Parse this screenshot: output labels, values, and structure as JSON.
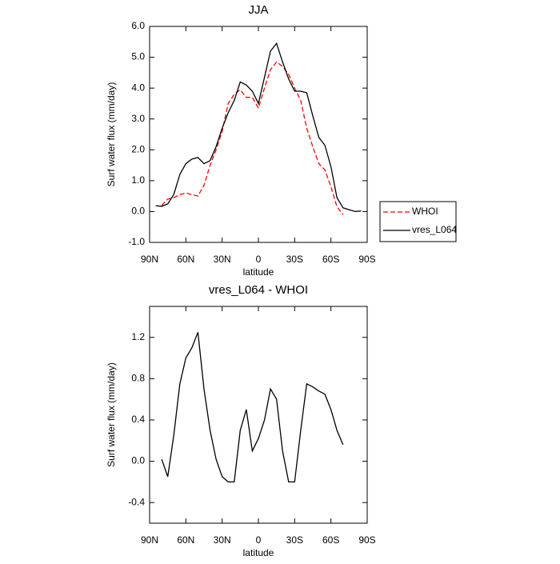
{
  "chart_data": [
    {
      "type": "line",
      "title": "JJA",
      "xlabel": "latitude",
      "ylabel": "Surf water flux (mm/day)",
      "x": [
        85,
        80,
        75,
        70,
        65,
        60,
        55,
        50,
        45,
        40,
        35,
        30,
        25,
        20,
        15,
        10,
        5,
        0,
        -5,
        -10,
        -15,
        -20,
        -25,
        -30,
        -35,
        -40,
        -45,
        -50,
        -55,
        -60,
        -65,
        -70,
        -75,
        -80,
        -85
      ],
      "series": [
        {
          "name": "WHOI",
          "color": "#ff0000",
          "line_style": "dashed",
          "values": [
            null,
            0.2,
            0.4,
            0.45,
            0.55,
            0.6,
            0.55,
            0.5,
            0.85,
            1.5,
            2.0,
            2.6,
            3.5,
            3.8,
            3.95,
            3.7,
            3.7,
            3.35,
            4.0,
            4.6,
            4.85,
            4.7,
            4.45,
            4.0,
            3.6,
            2.7,
            2.1,
            1.55,
            1.35,
            0.8,
            0.15,
            -0.1,
            null,
            null,
            null
          ]
        },
        {
          "name": "vres_L064",
          "color": "#000000",
          "line_style": "solid",
          "values": [
            0.19,
            0.17,
            0.25,
            0.55,
            1.2,
            1.55,
            1.7,
            1.75,
            1.55,
            1.65,
            2.1,
            2.7,
            3.2,
            3.6,
            4.2,
            4.1,
            3.9,
            3.5,
            4.35,
            5.2,
            5.45,
            4.85,
            4.3,
            3.9,
            3.9,
            3.85,
            3.1,
            2.4,
            2.15,
            1.45,
            0.45,
            0.12,
            0.06,
            0.0,
            0.02
          ]
        }
      ],
      "xlim": [
        90,
        -90
      ],
      "xticks": [
        {
          "value": 90,
          "label": "90N"
        },
        {
          "value": 60,
          "label": "60N"
        },
        {
          "value": 30,
          "label": "30N"
        },
        0,
        {
          "value": -30,
          "label": "30S"
        },
        {
          "value": -60,
          "label": "60S"
        },
        {
          "value": -90,
          "label": "90S"
        }
      ],
      "ylim": [
        -1,
        6
      ],
      "yticks": [
        {
          "value": -1,
          "label": "-1.0"
        },
        {
          "value": 0,
          "label": "0.0"
        },
        {
          "value": 1,
          "label": "1.0"
        },
        {
          "value": 2,
          "label": "2.0"
        },
        {
          "value": 3,
          "label": "3.0"
        },
        {
          "value": 4,
          "label": "4.0"
        },
        {
          "value": 5,
          "label": "5.0"
        },
        {
          "value": 6,
          "label": "6.0"
        }
      ],
      "legend": "outside-right"
    },
    {
      "type": "line",
      "title": "vres_L064 - WHOI",
      "xlabel": "latitude",
      "ylabel": "Surf water flux (mm/day)",
      "x": [
        80,
        75,
        70,
        65,
        60,
        55,
        50,
        45,
        40,
        35,
        30,
        25,
        20,
        15,
        10,
        5,
        0,
        -5,
        -10,
        -15,
        -20,
        -25,
        -30,
        -35,
        -40,
        -45,
        -50,
        -55,
        -60,
        -65,
        -70
      ],
      "series": [
        {
          "color": "#000000",
          "line_style": "solid",
          "values": [
            0.02,
            -0.15,
            0.25,
            0.75,
            1.0,
            1.1,
            1.25,
            0.7,
            0.3,
            0.02,
            -0.15,
            -0.2,
            -0.2,
            0.3,
            0.5,
            0.1,
            0.22,
            0.4,
            0.7,
            0.6,
            0.1,
            -0.2,
            -0.2,
            0.3,
            0.75,
            0.72,
            0.68,
            0.65,
            0.5,
            0.3,
            0.16
          ]
        }
      ],
      "xlim": [
        90,
        -90
      ],
      "xticks": [
        {
          "value": 90,
          "label": "90N"
        },
        {
          "value": 60,
          "label": "60N"
        },
        {
          "value": 30,
          "label": "30N"
        },
        0,
        {
          "value": -30,
          "label": "30S"
        },
        {
          "value": -60,
          "label": "60S"
        },
        {
          "value": -90,
          "label": "90S"
        }
      ],
      "ylim": [
        -0.6,
        1.5
      ],
      "yticks": [
        {
          "value": -0.4,
          "label": "-0.4"
        },
        {
          "value": 0,
          "label": "0.0"
        },
        0.4,
        0.8,
        1.2
      ]
    }
  ]
}
